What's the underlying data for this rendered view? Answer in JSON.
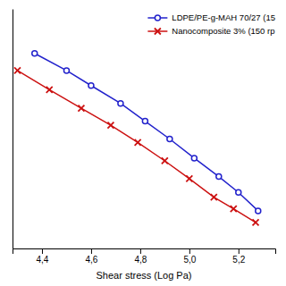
{
  "chart_data": {
    "type": "line",
    "xlabel": "Shear stress (Log Pa)",
    "xlim": [
      4.28,
      5.35
    ],
    "ylim": [
      1.0,
      4.5
    ],
    "xticks": [
      {
        "value": 4.4,
        "label": "4,4"
      },
      {
        "value": 4.6,
        "label": "4,6"
      },
      {
        "value": 4.8,
        "label": "4,8"
      },
      {
        "value": 5.0,
        "label": "5,0"
      },
      {
        "value": 5.2,
        "label": "5,2"
      }
    ],
    "tick_labels": "x",
    "grid": false,
    "legend": "upper right",
    "series": [
      {
        "name": "LDPE/PE-g-MAH 70/27 (15",
        "color": "#2222cc",
        "marker": "o",
        "x": [
          4.37,
          4.5,
          4.6,
          4.72,
          4.82,
          4.92,
          5.02,
          5.12,
          5.2,
          5.28
        ],
        "values": [
          3.85,
          3.6,
          3.38,
          3.12,
          2.86,
          2.6,
          2.32,
          2.05,
          1.82,
          1.55
        ]
      },
      {
        "name": "Nanocomposite 3% (150 rp",
        "color": "#cc1111",
        "marker": "x",
        "x": [
          4.3,
          4.43,
          4.56,
          4.68,
          4.79,
          4.9,
          5.0,
          5.1,
          5.18,
          5.27
        ],
        "values": [
          3.6,
          3.32,
          3.05,
          2.8,
          2.55,
          2.28,
          2.02,
          1.75,
          1.58,
          1.38
        ]
      }
    ]
  }
}
